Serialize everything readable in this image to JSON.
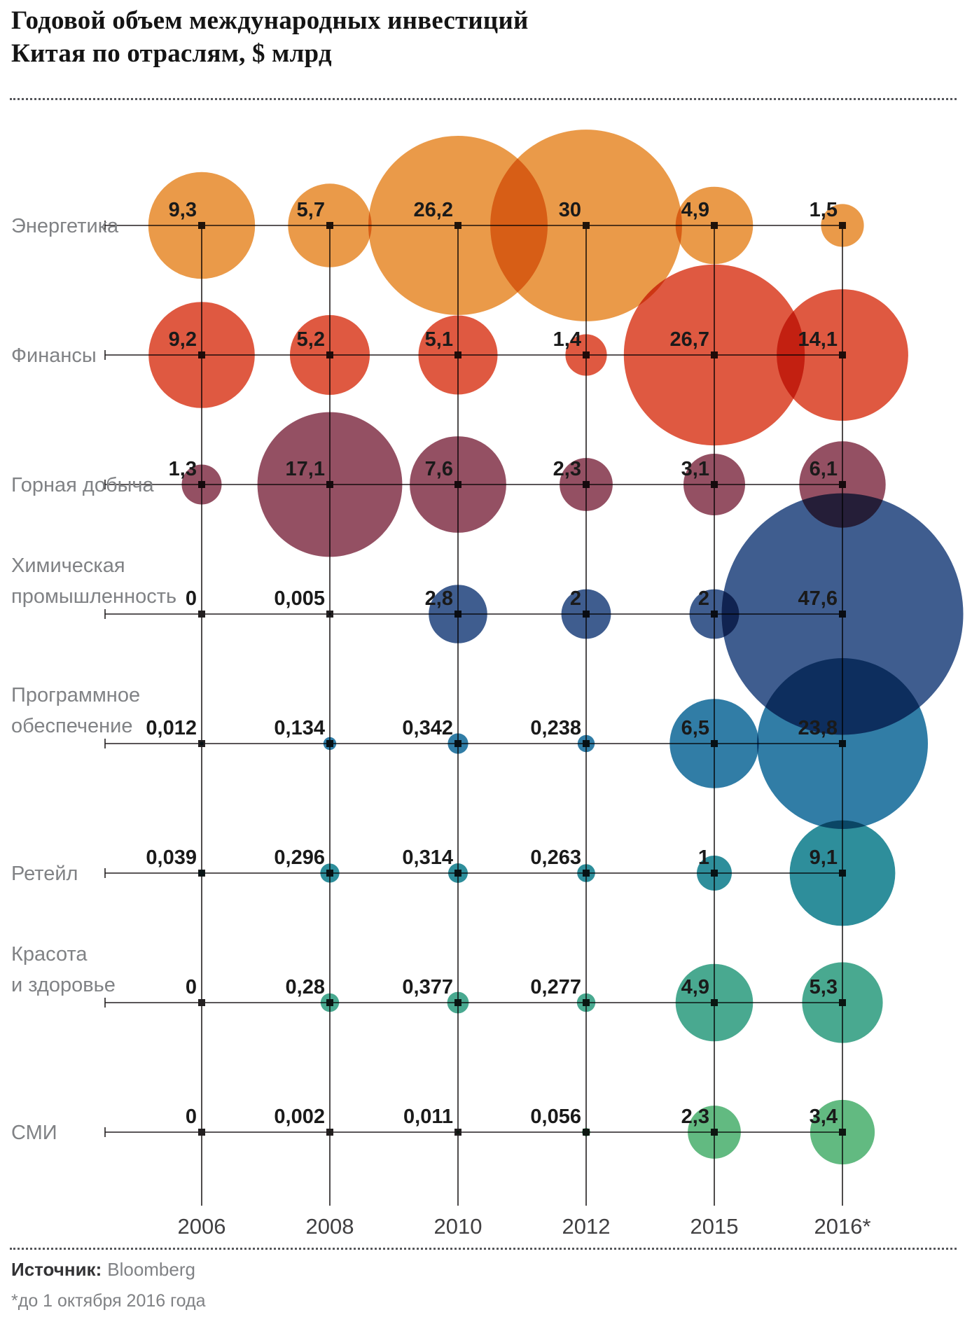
{
  "title": {
    "line1": "Годовой объем международных инвестиций",
    "line2": "Китая по отраслям, $ млрд"
  },
  "footer": {
    "source_label": "Источник:",
    "source_value": "Bloomberg",
    "footnote": "*до 1 октября 2016 года"
  },
  "chart_data": {
    "type": "bubble",
    "title": "Годовой объем международных инвестиций Китая по отраслям, $ млрд",
    "unit": "$ млрд",
    "size_encoding": "area proportional to value",
    "legend_position": "none",
    "grid": true,
    "x_categories": [
      "2006",
      "2008",
      "2010",
      "2012",
      "2015",
      "2016*"
    ],
    "rows": [
      {
        "label": [
          "Энергетика"
        ],
        "color": "#E8913A",
        "values": [
          9.3,
          5.7,
          26.2,
          30,
          4.9,
          1.5
        ],
        "display": [
          "9,3",
          "5,7",
          "26,2",
          "30",
          "4,9",
          "1,5"
        ]
      },
      {
        "label": [
          "Финансы"
        ],
        "color": "#DC4B31",
        "values": [
          9.2,
          5.2,
          5.1,
          1.4,
          26.7,
          14.1
        ],
        "display": [
          "9,2",
          "5,2",
          "5,1",
          "1,4",
          "26,7",
          "14,1"
        ]
      },
      {
        "label": [
          "Горная добыча"
        ],
        "color": "#8B4156",
        "values": [
          1.3,
          17.1,
          7.6,
          2.3,
          3.1,
          6.1
        ],
        "display": [
          "1,3",
          "17,1",
          "7,6",
          "2,3",
          "3,1",
          "6,1"
        ]
      },
      {
        "label": [
          "Химическая",
          "промышленность"
        ],
        "color": "#2F4F85",
        "values": [
          0,
          0.005,
          2.8,
          2,
          2,
          47.6
        ],
        "display": [
          "0",
          "0,005",
          "2,8",
          "2",
          "2",
          "47,6"
        ]
      },
      {
        "label": [
          "Программное",
          "обеспечение"
        ],
        "color": "#1F729E",
        "values": [
          0.012,
          0.134,
          0.342,
          0.238,
          6.5,
          23.8
        ],
        "display": [
          "0,012",
          "0,134",
          "0,342",
          "0,238",
          "6,5",
          "23,8"
        ]
      },
      {
        "label": [
          "Ретейл"
        ],
        "color": "#1C8493",
        "values": [
          0.039,
          0.296,
          0.314,
          0.263,
          1,
          9.1
        ],
        "display": [
          "0,039",
          "0,296",
          "0,314",
          "0,263",
          "1",
          "9,1"
        ]
      },
      {
        "label": [
          "Красота",
          "и здоровье"
        ],
        "color": "#3AA287",
        "values": [
          0,
          0.28,
          0.377,
          0.277,
          4.9,
          5.3
        ],
        "display": [
          "0",
          "0,28",
          "0,377",
          "0,277",
          "4,9",
          "5,3"
        ]
      },
      {
        "label": [
          "СМИ"
        ],
        "color": "#55B476",
        "values": [
          0,
          0.002,
          0.011,
          0.056,
          2.3,
          3.4
        ],
        "display": [
          "0",
          "0,002",
          "0,011",
          "0,056",
          "2,3",
          "3,4"
        ]
      }
    ]
  }
}
